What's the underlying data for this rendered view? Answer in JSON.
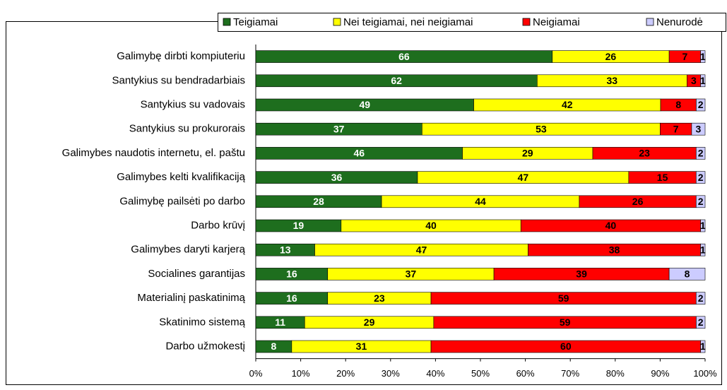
{
  "chart_data": {
    "type": "bar",
    "orientation": "horizontal",
    "stacked": "percent",
    "categories": [
      "Galimybę dirbti kompiuteriu",
      "Santykius su bendradarbiais",
      "Santykius su vadovais",
      "Santykius su prokurorais",
      "Galimybes naudotis internetu, el. paštu",
      "Galimybes kelti kvalifikaciją",
      "Galimybę pailsėti po darbo",
      "Darbo krūvį",
      "Galimybes daryti karjerą",
      "Socialines garantijas",
      "Materialinį paskatinimą",
      "Skatinimo sistemą",
      "Darbo užmokestį"
    ],
    "series": [
      {
        "name": "Teigiamai",
        "color": "#1e6e1e",
        "label_color": "#ffffff",
        "values": [
          66,
          62,
          49,
          37,
          46,
          36,
          28,
          19,
          13,
          16,
          16,
          11,
          8
        ]
      },
      {
        "name": "Nei teigiamai, nei neigiamai",
        "color": "#ffff00",
        "label_color": "#000000",
        "values": [
          26,
          33,
          42,
          53,
          29,
          47,
          44,
          40,
          47,
          37,
          23,
          29,
          31
        ]
      },
      {
        "name": "Neigiamai",
        "color": "#ff0000",
        "label_color": "#000000",
        "values": [
          7,
          3,
          8,
          7,
          23,
          15,
          26,
          40,
          38,
          39,
          59,
          59,
          60
        ]
      },
      {
        "name": "Nenurodė",
        "color": "#ccccff",
        "label_color": "#000000",
        "values": [
          1,
          1,
          2,
          3,
          2,
          2,
          2,
          1,
          1,
          8,
          2,
          2,
          1
        ]
      }
    ],
    "xlim": [
      0,
      100
    ],
    "xticks": [
      {
        "value": 0,
        "label": "0%"
      },
      {
        "value": 10,
        "label": "10%"
      },
      {
        "value": 20,
        "label": "20%"
      },
      {
        "value": 30,
        "label": "30%"
      },
      {
        "value": 40,
        "label": "40%"
      },
      {
        "value": 50,
        "label": "50%"
      },
      {
        "value": 60,
        "label": "60%"
      },
      {
        "value": 70,
        "label": "70%"
      },
      {
        "value": 80,
        "label": "80%"
      },
      {
        "value": 90,
        "label": "90%"
      },
      {
        "value": 100,
        "label": "100%"
      }
    ],
    "legend": "top-right"
  }
}
